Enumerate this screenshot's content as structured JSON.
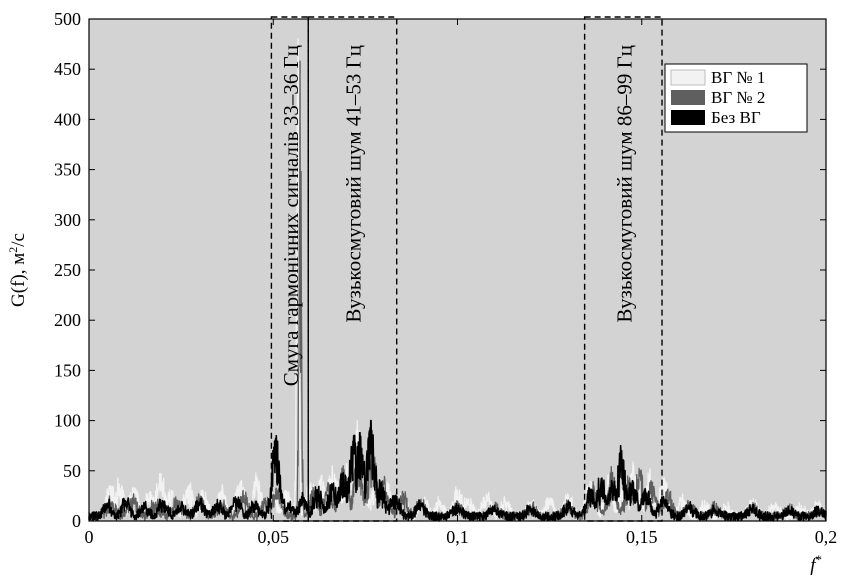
{
  "chart_data": {
    "type": "line",
    "xlabel": "f",
    "xlabel_sup": "*",
    "ylabel": "G(f), м",
    "ylabel_sup": "2",
    "ylabel_tail": "/с",
    "xlim": [
      0,
      0.2
    ],
    "ylim": [
      0,
      500
    ],
    "x_ticks": [
      0,
      0.05,
      0.1,
      0.15,
      0.2
    ],
    "x_tick_labels": [
      "0",
      "0,05",
      "0,1",
      "0,15",
      "0,2"
    ],
    "y_ticks": [
      0,
      50,
      100,
      150,
      200,
      250,
      300,
      350,
      400,
      450,
      500
    ],
    "y_tick_labels": [
      "0",
      "50",
      "100",
      "150",
      "200",
      "250",
      "300",
      "350",
      "400",
      "450",
      "500"
    ],
    "grid": false,
    "background": "#d3d3d3",
    "legend_position": "top-right",
    "series": [
      {
        "name": "ВГ № 1",
        "color": "#f2f2f2",
        "peaks": [
          [
            0.0058,
            35
          ],
          [
            0.0082,
            37
          ],
          [
            0.0123,
            33
          ],
          [
            0.0165,
            28
          ],
          [
            0.0195,
            47
          ],
          [
            0.0225,
            30
          ],
          [
            0.027,
            35
          ],
          [
            0.031,
            28
          ],
          [
            0.036,
            30
          ],
          [
            0.041,
            38
          ],
          [
            0.0455,
            44
          ],
          [
            0.05,
            25
          ],
          [
            0.0535,
            30
          ],
          [
            0.0567,
            480
          ],
          [
            0.0602,
            38
          ],
          [
            0.063,
            45
          ],
          [
            0.066,
            55
          ],
          [
            0.068,
            40
          ],
          [
            0.0705,
            60
          ],
          [
            0.0728,
            100
          ],
          [
            0.0745,
            40
          ],
          [
            0.078,
            45
          ],
          [
            0.081,
            35
          ],
          [
            0.085,
            25
          ],
          [
            0.091,
            20
          ],
          [
            0.095,
            18
          ],
          [
            0.1,
            30
          ],
          [
            0.103,
            22
          ],
          [
            0.108,
            25
          ],
          [
            0.113,
            20
          ],
          [
            0.12,
            18
          ],
          [
            0.125,
            20
          ],
          [
            0.13,
            22
          ],
          [
            0.136,
            38
          ],
          [
            0.141,
            45
          ],
          [
            0.145,
            35
          ],
          [
            0.1478,
            55
          ],
          [
            0.152,
            45
          ],
          [
            0.156,
            38
          ],
          [
            0.161,
            20
          ],
          [
            0.167,
            15
          ],
          [
            0.173,
            12
          ],
          [
            0.18,
            18
          ],
          [
            0.186,
            15
          ],
          [
            0.193,
            12
          ],
          [
            0.198,
            15
          ]
        ]
      },
      {
        "name": "ВГ № 2",
        "color": "#5f5f5f",
        "peaks": [
          [
            0.006,
            18
          ],
          [
            0.012,
            22
          ],
          [
            0.018,
            18
          ],
          [
            0.024,
            20
          ],
          [
            0.03,
            22
          ],
          [
            0.036,
            18
          ],
          [
            0.042,
            25
          ],
          [
            0.048,
            20
          ],
          [
            0.051,
            30
          ],
          [
            0.0573,
            458
          ],
          [
            0.061,
            30
          ],
          [
            0.065,
            38
          ],
          [
            0.069,
            55
          ],
          [
            0.073,
            65
          ],
          [
            0.0768,
            75
          ],
          [
            0.08,
            40
          ],
          [
            0.085,
            28
          ],
          [
            0.09,
            20
          ],
          [
            0.1,
            15
          ],
          [
            0.11,
            14
          ],
          [
            0.12,
            12
          ],
          [
            0.13,
            15
          ],
          [
            0.137,
            35
          ],
          [
            0.142,
            48
          ],
          [
            0.1465,
            40
          ],
          [
            0.1495,
            50
          ],
          [
            0.1525,
            40
          ],
          [
            0.157,
            30
          ],
          [
            0.163,
            15
          ],
          [
            0.17,
            12
          ],
          [
            0.18,
            14
          ],
          [
            0.19,
            10
          ],
          [
            0.198,
            8
          ]
        ]
      },
      {
        "name": "Без ВГ",
        "color": "#000000",
        "peaks": [
          [
            0.005,
            14
          ],
          [
            0.01,
            18
          ],
          [
            0.015,
            12
          ],
          [
            0.02,
            20
          ],
          [
            0.025,
            15
          ],
          [
            0.03,
            18
          ],
          [
            0.035,
            14
          ],
          [
            0.04,
            22
          ],
          [
            0.045,
            15
          ],
          [
            0.0508,
            85
          ],
          [
            0.054,
            18
          ],
          [
            0.058,
            25
          ],
          [
            0.062,
            30
          ],
          [
            0.066,
            35
          ],
          [
            0.069,
            48
          ],
          [
            0.0718,
            85
          ],
          [
            0.0735,
            88
          ],
          [
            0.0765,
            100
          ],
          [
            0.079,
            38
          ],
          [
            0.083,
            25
          ],
          [
            0.09,
            15
          ],
          [
            0.1,
            12
          ],
          [
            0.11,
            10
          ],
          [
            0.12,
            10
          ],
          [
            0.13,
            12
          ],
          [
            0.136,
            30
          ],
          [
            0.139,
            42
          ],
          [
            0.142,
            38
          ],
          [
            0.1445,
            70
          ],
          [
            0.1475,
            40
          ],
          [
            0.151,
            30
          ],
          [
            0.156,
            22
          ],
          [
            0.163,
            12
          ],
          [
            0.17,
            10
          ],
          [
            0.18,
            10
          ],
          [
            0.19,
            8
          ],
          [
            0.198,
            7
          ]
        ]
      }
    ],
    "annotations": [
      {
        "text": "Смуга гармонічних сигналів 33–36 Гц",
        "x_range": [
          0.0495,
          0.0595
        ],
        "y_range": [
          0,
          500
        ]
      },
      {
        "text": "Вузькосмуговий шум 41–53 Гц",
        "x_range": [
          0.0595,
          0.0835
        ],
        "y_range": [
          0,
          500
        ]
      },
      {
        "text": "Вузькосмуговий шум 86–99 Гц",
        "x_range": [
          0.1345,
          0.1555
        ],
        "y_range": [
          0,
          500
        ]
      }
    ]
  }
}
